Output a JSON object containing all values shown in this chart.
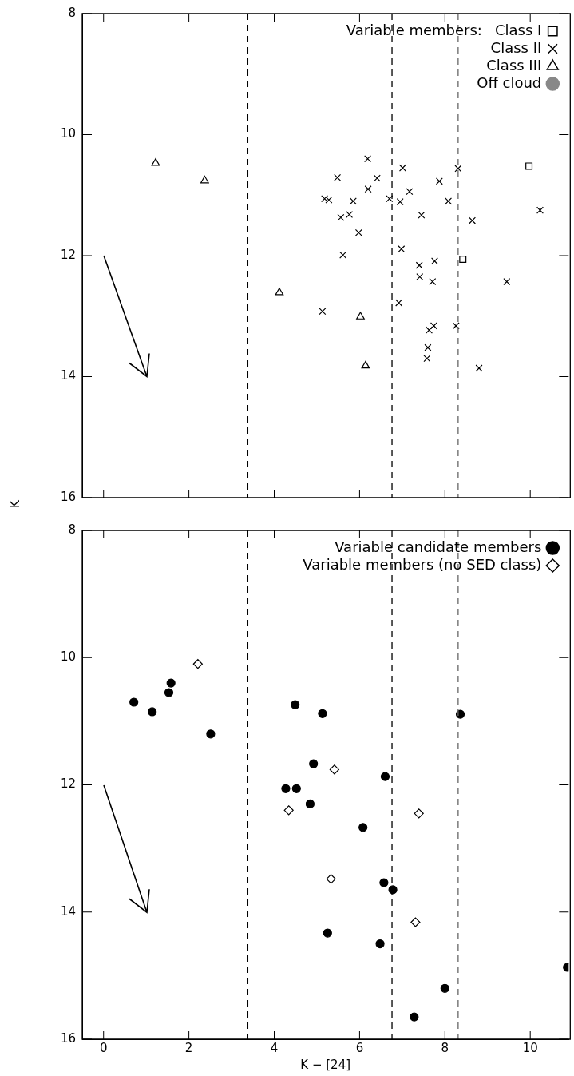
{
  "chart_data": [
    {
      "type": "scatter",
      "ylabel": "K",
      "legend_title": "Variable members:",
      "legend": "top right",
      "tick_labels": "y",
      "grid": false,
      "xlim": [
        -0.5,
        10.9
      ],
      "xticks": [
        0,
        2,
        4,
        6,
        8,
        10
      ],
      "ylim": [
        16,
        8
      ],
      "yticks": [
        8,
        10,
        12,
        14,
        16
      ],
      "ref_lines": [
        {
          "axis": "x",
          "value": 3.38,
          "color": "#000000",
          "line_style": "dashed"
        },
        {
          "axis": "x",
          "value": 6.76,
          "color": "#000000",
          "line_style": "dashed"
        },
        {
          "axis": "x",
          "value": 8.31,
          "color": "#666666",
          "line_style": "dashed"
        }
      ],
      "series": [
        {
          "name": "Class I",
          "color": "#000000",
          "marker": "square",
          "x": [
            9.97,
            8.42
          ],
          "values": [
            10.52,
            12.06
          ]
        },
        {
          "name": "Class II",
          "color": "#000000",
          "marker": "cross",
          "x": [
            6.19,
            7.01,
            8.31,
            5.48,
            6.41,
            7.87,
            6.2,
            7.17,
            5.18,
            5.28,
            5.85,
            6.7,
            6.95,
            8.08,
            10.23,
            5.76,
            5.56,
            7.45,
            8.64,
            5.98,
            5.61,
            6.98,
            7.76,
            7.4,
            7.41,
            7.71,
            9.45,
            6.92,
            5.13,
            7.74,
            7.63,
            8.26,
            7.6,
            7.58,
            8.8
          ],
          "values": [
            10.4,
            10.55,
            10.56,
            10.71,
            10.72,
            10.77,
            10.9,
            10.94,
            11.06,
            11.08,
            11.1,
            11.06,
            11.11,
            11.1,
            11.25,
            11.32,
            11.37,
            11.33,
            11.42,
            11.62,
            11.99,
            11.89,
            12.09,
            12.16,
            12.35,
            12.43,
            12.43,
            12.78,
            12.92,
            13.16,
            13.23,
            13.16,
            13.52,
            13.7,
            13.86
          ]
        },
        {
          "name": "Class III",
          "color": "#000000",
          "marker": "triangle",
          "x": [
            1.22,
            2.37,
            4.12,
            6.02,
            6.14
          ],
          "values": [
            10.47,
            10.76,
            12.61,
            13.01,
            13.82
          ]
        },
        {
          "name": "Off cloud",
          "color": "#888888",
          "marker": "circle"
        }
      ]
    },
    {
      "type": "scatter",
      "xlabel": "K − [24]",
      "legend": "top right",
      "grid": false,
      "xlim": [
        -0.5,
        10.9
      ],
      "xticks": [
        0,
        2,
        4,
        6,
        8,
        10
      ],
      "ylim": [
        16,
        8
      ],
      "yticks": [
        8,
        10,
        12,
        14,
        16
      ],
      "ref_lines": [
        {
          "axis": "x",
          "value": 3.38,
          "color": "#000000",
          "line_style": "dashed"
        },
        {
          "axis": "x",
          "value": 6.76,
          "color": "#000000",
          "line_style": "dashed"
        },
        {
          "axis": "x",
          "value": 8.31,
          "color": "#666666",
          "line_style": "dashed"
        }
      ],
      "series": [
        {
          "name": "Variable candidate members",
          "color": "#000000",
          "marker": "circle",
          "x": [
            0.71,
            1.14,
            1.53,
            1.58,
            2.51,
            4.49,
            4.92,
            4.27,
            4.52,
            4.84,
            5.13,
            8.36,
            6.6,
            6.08,
            6.57,
            6.78,
            5.25,
            6.48,
            8.0,
            7.28,
            10.87
          ],
          "values": [
            10.7,
            10.85,
            10.55,
            10.4,
            11.2,
            10.74,
            11.67,
            12.06,
            12.06,
            12.3,
            10.88,
            10.89,
            11.87,
            12.67,
            13.54,
            13.65,
            14.33,
            14.5,
            15.2,
            15.65,
            14.87
          ]
        },
        {
          "name": "Variable members (no SED class)",
          "color": "#000000",
          "marker": "diamond",
          "x": [
            2.21,
            4.34,
            5.41,
            7.39,
            5.33,
            7.31
          ],
          "values": [
            10.1,
            12.4,
            11.76,
            12.45,
            13.48,
            14.16
          ]
        }
      ]
    }
  ]
}
